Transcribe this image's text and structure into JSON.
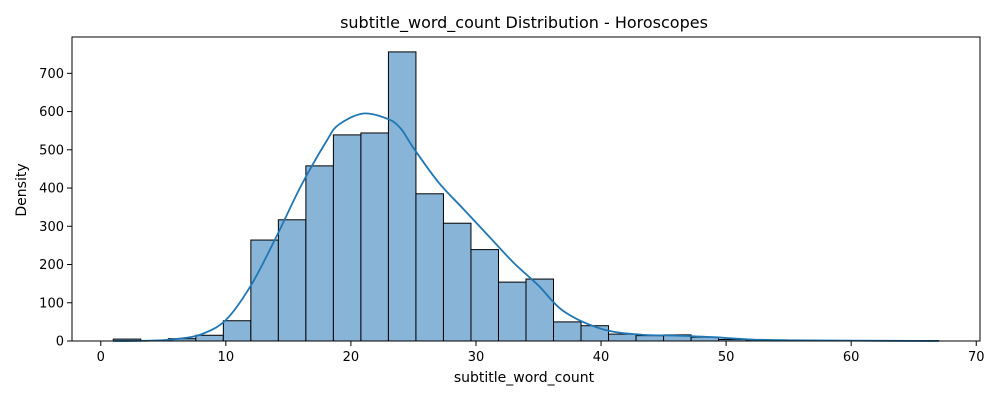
{
  "chart_data": {
    "type": "bar",
    "title": "subtitle_word_count Distribution - Horoscopes",
    "xlabel": "subtitle_word_count",
    "ylabel": "Density",
    "xlim": [
      -2.3,
      70.3
    ],
    "ylim": [
      0,
      795
    ],
    "x_ticks": [
      0,
      10,
      20,
      30,
      40,
      50,
      60,
      70
    ],
    "y_ticks": [
      0,
      100,
      200,
      300,
      400,
      500,
      600,
      700
    ],
    "grid": false,
    "legend": "none",
    "bin_width": 2.2,
    "bins": [
      {
        "x0": 1.0,
        "x1": 3.2,
        "value": 5
      },
      {
        "x0": 3.2,
        "x1": 5.4,
        "value": 0
      },
      {
        "x0": 5.4,
        "x1": 7.6,
        "value": 6
      },
      {
        "x0": 7.6,
        "x1": 9.8,
        "value": 15
      },
      {
        "x0": 9.8,
        "x1": 12.0,
        "value": 53
      },
      {
        "x0": 12.0,
        "x1": 14.2,
        "value": 264
      },
      {
        "x0": 14.2,
        "x1": 16.4,
        "value": 317
      },
      {
        "x0": 16.4,
        "x1": 18.6,
        "value": 458
      },
      {
        "x0": 18.6,
        "x1": 20.8,
        "value": 539
      },
      {
        "x0": 20.8,
        "x1": 23.0,
        "value": 544
      },
      {
        "x0": 23.0,
        "x1": 25.2,
        "value": 756
      },
      {
        "x0": 25.2,
        "x1": 27.4,
        "value": 385
      },
      {
        "x0": 27.4,
        "x1": 29.6,
        "value": 308
      },
      {
        "x0": 29.6,
        "x1": 31.8,
        "value": 239
      },
      {
        "x0": 31.8,
        "x1": 34.0,
        "value": 154
      },
      {
        "x0": 34.0,
        "x1": 36.2,
        "value": 162
      },
      {
        "x0": 36.2,
        "x1": 38.4,
        "value": 50
      },
      {
        "x0": 38.4,
        "x1": 40.6,
        "value": 40
      },
      {
        "x0": 40.6,
        "x1": 42.8,
        "value": 18
      },
      {
        "x0": 42.8,
        "x1": 45.0,
        "value": 14
      },
      {
        "x0": 45.0,
        "x1": 47.2,
        "value": 16
      },
      {
        "x0": 47.2,
        "x1": 49.4,
        "value": 10
      },
      {
        "x0": 49.4,
        "x1": 51.6,
        "value": 4
      },
      {
        "x0": 51.6,
        "x1": 53.8,
        "value": 1
      },
      {
        "x0": 53.8,
        "x1": 56.0,
        "value": 0
      },
      {
        "x0": 56.0,
        "x1": 58.2,
        "value": 0
      },
      {
        "x0": 58.2,
        "x1": 60.4,
        "value": 0
      },
      {
        "x0": 60.4,
        "x1": 62.6,
        "value": 0
      },
      {
        "x0": 62.6,
        "x1": 64.8,
        "value": 0
      },
      {
        "x0": 64.8,
        "x1": 67.0,
        "value": 1
      }
    ],
    "kde": {
      "x": [
        1,
        4,
        6,
        8,
        10,
        12,
        14,
        16,
        18,
        19,
        21,
        23,
        24,
        25,
        27,
        29,
        31,
        33,
        35,
        37,
        40,
        43,
        46,
        49,
        52,
        55,
        60,
        67
      ],
      "y": [
        0,
        1,
        5,
        17,
        55,
        145,
        270,
        405,
        520,
        565,
        595,
        580,
        555,
        505,
        415,
        345,
        275,
        205,
        145,
        78,
        32,
        17,
        14,
        10,
        4,
        2,
        1,
        0
      ]
    },
    "colors": {
      "bar_fill": "#88b4d8",
      "bar_edge": "#000000",
      "kde_line": "#1f77b4"
    }
  }
}
